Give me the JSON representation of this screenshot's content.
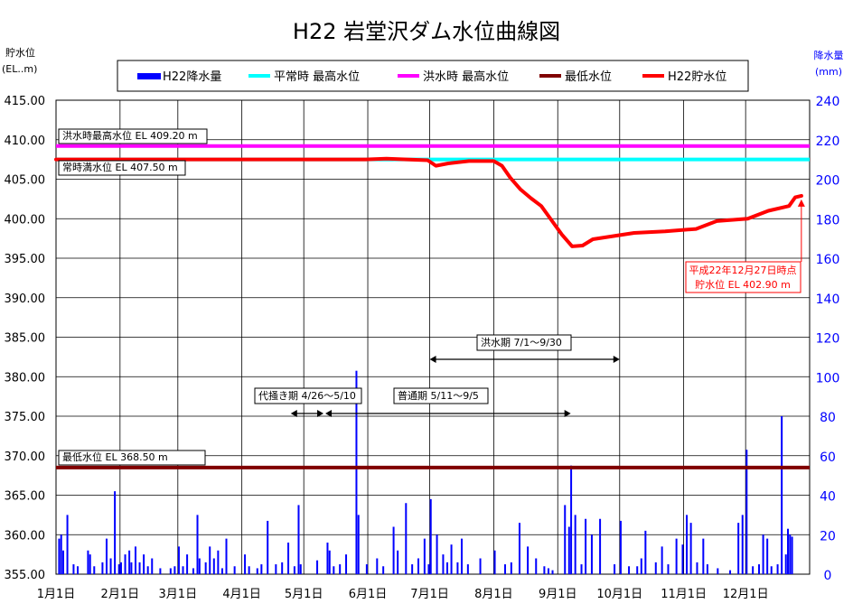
{
  "chart_data": {
    "type": "line",
    "title": "H22 岩堂沢ダム水位曲線図",
    "left_axis": {
      "label_line1": "貯水位",
      "label_line2": "(EL..m)",
      "min": 355,
      "max": 415,
      "step": 5,
      "ticks": [
        "415.00",
        "410.00",
        "405.00",
        "400.00",
        "395.00",
        "390.00",
        "385.00",
        "380.00",
        "375.00",
        "370.00",
        "365.00",
        "360.00",
        "355.00"
      ]
    },
    "right_axis": {
      "label_line1": "降水量",
      "label_line2": "(mm)",
      "min": 0,
      "max": 240,
      "step": 20,
      "ticks": [
        "240",
        "220",
        "200",
        "180",
        "160",
        "140",
        "120",
        "100",
        "80",
        "60",
        "40",
        "20",
        "0"
      ]
    },
    "x_axis": {
      "days": 365,
      "month_labels": [
        "1月1日",
        "2月1日",
        "3月1日",
        "4月1日",
        "5月1日",
        "6月1日",
        "7月1日",
        "8月1日",
        "9月1日",
        "10月1日",
        "11月1日",
        "12月1日"
      ],
      "month_start_days": [
        0,
        31,
        59,
        90,
        120,
        151,
        181,
        212,
        243,
        273,
        304,
        334
      ]
    },
    "legend": [
      {
        "name": "H22降水量",
        "color": "#0000ff",
        "kind": "bar"
      },
      {
        "name": "平常時 最高水位",
        "color": "#00ffff",
        "kind": "line"
      },
      {
        "name": "洪水時 最高水位",
        "color": "#ff00ff",
        "kind": "line"
      },
      {
        "name": "最低水位",
        "color": "#800000",
        "kind": "line"
      },
      {
        "name": "H22貯水位",
        "color": "#ff0000",
        "kind": "line"
      }
    ],
    "reference_lines": [
      {
        "name": "洪水時 最高水位",
        "value": 409.2,
        "color": "#ff00ff",
        "label": "洪水時最高水位 EL 409.20 m"
      },
      {
        "name": "平常時 最高水位",
        "value": 407.5,
        "color": "#00ffff",
        "label": "常時満水位 EL 407.50 m"
      },
      {
        "name": "最低水位",
        "value": 368.5,
        "color": "#800000",
        "label": "最低水位 EL 368.50 m"
      }
    ],
    "series": [
      {
        "name": "H22貯水位",
        "color": "#ff0000",
        "points": [
          [
            0,
            407.5
          ],
          [
            30,
            407.5
          ],
          [
            60,
            407.5
          ],
          [
            90,
            407.5
          ],
          [
            120,
            407.5
          ],
          [
            150,
            407.5
          ],
          [
            160,
            407.6
          ],
          [
            170,
            407.5
          ],
          [
            180,
            407.4
          ],
          [
            184,
            406.7
          ],
          [
            190,
            407.0
          ],
          [
            200,
            407.3
          ],
          [
            212,
            407.3
          ],
          [
            216,
            406.7
          ],
          [
            220,
            405.2
          ],
          [
            225,
            403.7
          ],
          [
            230,
            402.6
          ],
          [
            235,
            401.6
          ],
          [
            240,
            399.8
          ],
          [
            245,
            398.0
          ],
          [
            250,
            396.5
          ],
          [
            255,
            396.6
          ],
          [
            260,
            397.4
          ],
          [
            270,
            397.8
          ],
          [
            280,
            398.2
          ],
          [
            295,
            398.4
          ],
          [
            310,
            398.7
          ],
          [
            320,
            399.7
          ],
          [
            335,
            400.0
          ],
          [
            345,
            401.0
          ],
          [
            355,
            401.6
          ],
          [
            358,
            402.7
          ],
          [
            361,
            402.9
          ]
        ]
      },
      {
        "name": "H22降水量",
        "color": "#0000ff",
        "bars": [
          [
            1,
            18
          ],
          [
            2,
            20
          ],
          [
            3,
            12
          ],
          [
            5,
            30
          ],
          [
            8,
            5
          ],
          [
            10,
            4
          ],
          [
            15,
            12
          ],
          [
            16,
            10
          ],
          [
            18,
            4
          ],
          [
            22,
            6
          ],
          [
            24,
            18
          ],
          [
            26,
            8
          ],
          [
            28,
            42
          ],
          [
            30,
            5
          ],
          [
            31,
            6
          ],
          [
            33,
            10
          ],
          [
            35,
            12
          ],
          [
            36,
            6
          ],
          [
            38,
            14
          ],
          [
            40,
            6
          ],
          [
            42,
            10
          ],
          [
            44,
            4
          ],
          [
            46,
            8
          ],
          [
            50,
            3
          ],
          [
            55,
            3
          ],
          [
            57,
            4
          ],
          [
            59,
            14
          ],
          [
            61,
            4
          ],
          [
            63,
            10
          ],
          [
            66,
            3
          ],
          [
            68,
            30
          ],
          [
            69,
            8
          ],
          [
            72,
            6
          ],
          [
            74,
            14
          ],
          [
            76,
            8
          ],
          [
            78,
            12
          ],
          [
            80,
            3
          ],
          [
            82,
            18
          ],
          [
            86,
            4
          ],
          [
            91,
            10
          ],
          [
            93,
            4
          ],
          [
            97,
            3
          ],
          [
            99,
            5
          ],
          [
            102,
            27
          ],
          [
            106,
            5
          ],
          [
            109,
            6
          ],
          [
            112,
            16
          ],
          [
            115,
            4
          ],
          [
            117,
            35
          ],
          [
            118,
            5
          ],
          [
            126,
            7
          ],
          [
            131,
            16
          ],
          [
            132,
            12
          ],
          [
            134,
            4
          ],
          [
            137,
            5
          ],
          [
            140,
            10
          ],
          [
            145,
            103
          ],
          [
            146,
            30
          ],
          [
            150,
            5
          ],
          [
            155,
            8
          ],
          [
            158,
            4
          ],
          [
            163,
            24
          ],
          [
            165,
            12
          ],
          [
            169,
            36
          ],
          [
            172,
            5
          ],
          [
            175,
            8
          ],
          [
            178,
            18
          ],
          [
            180,
            5
          ],
          [
            181,
            38
          ],
          [
            184,
            20
          ],
          [
            187,
            10
          ],
          [
            189,
            6
          ],
          [
            191,
            15
          ],
          [
            194,
            6
          ],
          [
            196,
            18
          ],
          [
            199,
            5
          ],
          [
            205,
            8
          ],
          [
            212,
            12
          ],
          [
            217,
            5
          ],
          [
            220,
            6
          ],
          [
            224,
            26
          ],
          [
            228,
            14
          ],
          [
            232,
            8
          ],
          [
            236,
            4
          ],
          [
            238,
            3
          ],
          [
            240,
            2
          ],
          [
            246,
            35
          ],
          [
            248,
            24
          ],
          [
            249,
            55
          ],
          [
            251,
            30
          ],
          [
            254,
            5
          ],
          [
            256,
            28
          ],
          [
            259,
            20
          ],
          [
            263,
            28
          ],
          [
            270,
            5
          ],
          [
            273,
            27
          ],
          [
            277,
            4
          ],
          [
            281,
            4
          ],
          [
            283,
            8
          ],
          [
            285,
            22
          ],
          [
            290,
            6
          ],
          [
            293,
            14
          ],
          [
            296,
            5
          ],
          [
            300,
            18
          ],
          [
            303,
            15
          ],
          [
            305,
            30
          ],
          [
            307,
            26
          ],
          [
            310,
            6
          ],
          [
            313,
            18
          ],
          [
            315,
            5
          ],
          [
            320,
            3
          ],
          [
            326,
            2
          ],
          [
            330,
            26
          ],
          [
            332,
            30
          ],
          [
            334,
            63
          ],
          [
            337,
            4
          ],
          [
            340,
            5
          ],
          [
            342,
            20
          ],
          [
            344,
            18
          ],
          [
            346,
            4
          ],
          [
            349,
            5
          ],
          [
            351,
            80
          ],
          [
            353,
            10
          ],
          [
            354,
            23
          ],
          [
            355,
            20
          ],
          [
            356,
            19
          ]
        ]
      }
    ],
    "annotations": [
      {
        "name": "current-level-note",
        "line1": "平成22年12月27日時点",
        "line2": "貯水位 EL 402.90 m",
        "day": 361,
        "value": 402.9
      },
      {
        "name": "flood-period",
        "label": "洪水期 7/1～9/30",
        "from_day": 181,
        "to_day": 273
      },
      {
        "name": "irrigation-period",
        "label": "代掻き期 4/26～5/10",
        "from_day": 115,
        "to_day": 130
      },
      {
        "name": "normal-period",
        "label": "普通期 5/11～9/5",
        "from_day": 130,
        "to_day": 248
      }
    ],
    "grid": true,
    "legend_position": "top-center",
    "xlim_days": [
      0,
      365
    ],
    "ylim": [
      355,
      415
    ],
    "y2lim": [
      0,
      240
    ]
  }
}
